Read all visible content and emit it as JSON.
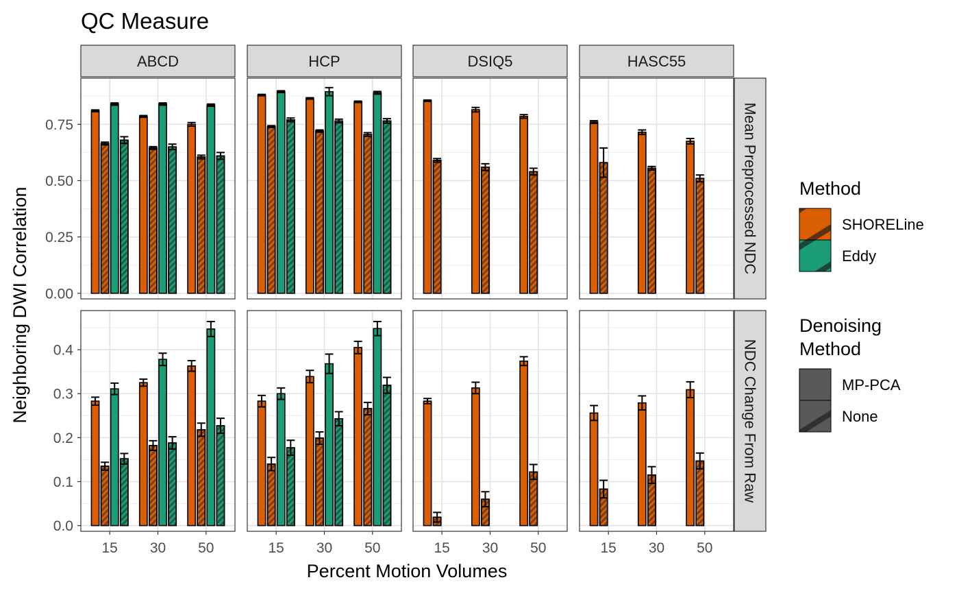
{
  "chart_data": {
    "type": "bar",
    "title": "QC Measure",
    "xlabel": "Percent Motion Volumes",
    "ylabel": "Neighboring DWI Correlation",
    "categories": [
      "15",
      "30",
      "50"
    ],
    "columns": [
      "ABCD",
      "HCP",
      "DSIQ5",
      "HASC55"
    ],
    "rows": [
      {
        "label": "Mean Preprocessed NDC",
        "ylim": [
          -0.025,
          0.955
        ],
        "ticks": [
          0,
          0.25,
          0.5,
          0.75
        ],
        "tick_labels": [
          "0.00",
          "0.25",
          "0.50",
          "0.75"
        ]
      },
      {
        "label": "NDC Change From Raw",
        "ylim": [
          -0.013,
          0.489
        ],
        "ticks": [
          0,
          0.1,
          0.2,
          0.3,
          0.4
        ],
        "tick_labels": [
          "0.0",
          "0.1",
          "0.2",
          "0.3",
          "0.4"
        ]
      }
    ],
    "series_order": [
      {
        "method": "SHORELine",
        "denoising": "MP-PCA"
      },
      {
        "method": "SHORELine",
        "denoising": "None"
      },
      {
        "method": "Eddy",
        "denoising": "MP-PCA"
      },
      {
        "method": "Eddy",
        "denoising": "None"
      }
    ],
    "colors": {
      "SHORELine": "#d95f02",
      "Eddy": "#1b9e77"
    },
    "legend": {
      "position": "right",
      "method_title": "Method",
      "method_items": [
        "SHORELine",
        "Eddy"
      ],
      "denoising_title_lines": [
        "Denoising",
        "Method"
      ],
      "denoising_items": [
        "MP-PCA",
        "None"
      ]
    },
    "grid": true,
    "panels": [
      {
        "row": 0,
        "col": 0,
        "values": [
          [
            0.81,
            0.665,
            0.84,
            0.68
          ],
          [
            0.785,
            0.645,
            0.84,
            0.65
          ],
          [
            0.75,
            0.605,
            0.835,
            0.61
          ]
        ],
        "errors": [
          [
            0.004,
            0.006,
            0.005,
            0.015
          ],
          [
            0.004,
            0.006,
            0.005,
            0.012
          ],
          [
            0.008,
            0.008,
            0.005,
            0.015
          ]
        ]
      },
      {
        "row": 0,
        "col": 1,
        "values": [
          [
            0.88,
            0.74,
            0.895,
            0.77
          ],
          [
            0.865,
            0.72,
            0.895,
            0.765
          ],
          [
            0.85,
            0.705,
            0.89,
            0.765
          ]
        ],
        "errors": [
          [
            0.003,
            0.004,
            0.004,
            0.008
          ],
          [
            0.003,
            0.005,
            0.018,
            0.008
          ],
          [
            0.003,
            0.008,
            0.006,
            0.01
          ]
        ]
      },
      {
        "row": 0,
        "col": 2,
        "values": [
          [
            0.855,
            0.59,
            null,
            null
          ],
          [
            0.815,
            0.56,
            null,
            null
          ],
          [
            0.785,
            0.54,
            null,
            null
          ]
        ],
        "errors": [
          [
            0.003,
            0.008,
            0,
            0
          ],
          [
            0.01,
            0.015,
            0,
            0
          ],
          [
            0.008,
            0.015,
            0,
            0
          ]
        ]
      },
      {
        "row": 0,
        "col": 3,
        "values": [
          [
            0.76,
            0.58,
            null,
            null
          ],
          [
            0.715,
            0.555,
            null,
            null
          ],
          [
            0.675,
            0.51,
            null,
            null
          ]
        ],
        "errors": [
          [
            0.006,
            0.065,
            0,
            0
          ],
          [
            0.01,
            0.008,
            0,
            0
          ],
          [
            0.012,
            0.015,
            0,
            0
          ]
        ]
      },
      {
        "row": 1,
        "col": 0,
        "values": [
          [
            0.283,
            0.135,
            0.311,
            0.152
          ],
          [
            0.325,
            0.182,
            0.378,
            0.188
          ],
          [
            0.363,
            0.218,
            0.447,
            0.227
          ]
        ],
        "errors": [
          [
            0.009,
            0.009,
            0.013,
            0.012
          ],
          [
            0.008,
            0.011,
            0.014,
            0.014
          ],
          [
            0.012,
            0.015,
            0.017,
            0.017
          ]
        ]
      },
      {
        "row": 1,
        "col": 1,
        "values": [
          [
            0.283,
            0.14,
            0.3,
            0.177
          ],
          [
            0.339,
            0.199,
            0.368,
            0.243
          ],
          [
            0.405,
            0.266,
            0.448,
            0.319
          ]
        ],
        "errors": [
          [
            0.013,
            0.015,
            0.013,
            0.017
          ],
          [
            0.014,
            0.014,
            0.022,
            0.016
          ],
          [
            0.014,
            0.014,
            0.016,
            0.018
          ]
        ]
      },
      {
        "row": 1,
        "col": 2,
        "values": [
          [
            0.283,
            0.019,
            null,
            null
          ],
          [
            0.313,
            0.06,
            null,
            null
          ],
          [
            0.374,
            0.122,
            null,
            null
          ]
        ],
        "errors": [
          [
            0.006,
            0.011,
            0,
            0
          ],
          [
            0.013,
            0.017,
            0,
            0
          ],
          [
            0.01,
            0.017,
            0,
            0
          ]
        ]
      },
      {
        "row": 1,
        "col": 3,
        "values": [
          [
            0.256,
            0.083,
            null,
            null
          ],
          [
            0.279,
            0.115,
            null,
            null
          ],
          [
            0.309,
            0.147,
            null,
            null
          ]
        ],
        "errors": [
          [
            0.017,
            0.02,
            0,
            0
          ],
          [
            0.016,
            0.019,
            0,
            0
          ],
          [
            0.018,
            0.018,
            0,
            0
          ]
        ]
      }
    ]
  }
}
